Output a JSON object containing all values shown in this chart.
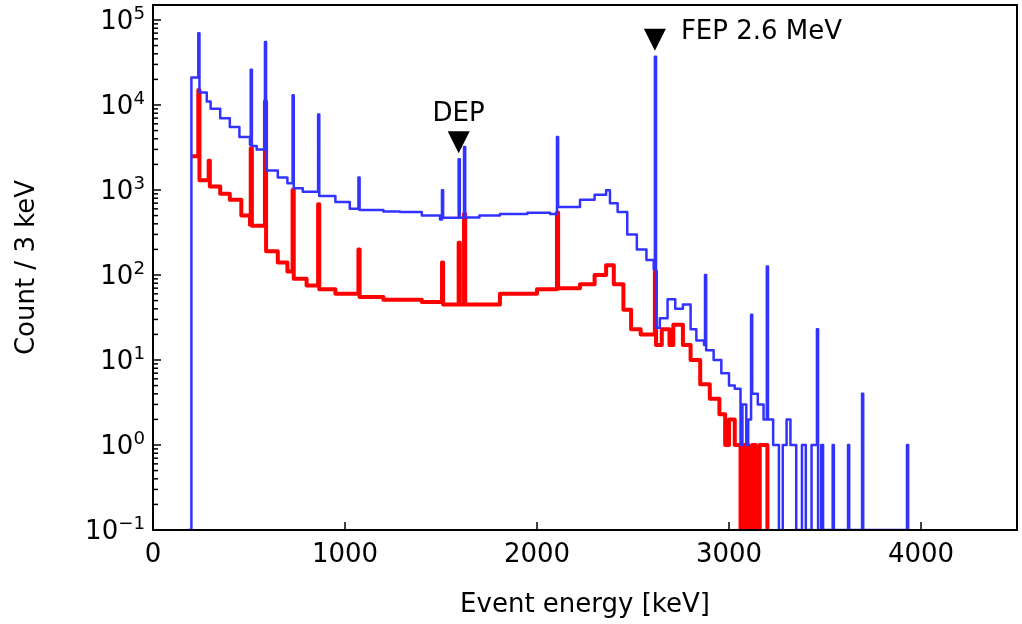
{
  "chart_data": {
    "type": "step",
    "xlabel": "Event energy [keV]",
    "ylabel": "Count / 3 keV",
    "log": "y",
    "grid": false,
    "xlim": [
      0,
      4500
    ],
    "xticks": [
      0,
      1000,
      2000,
      3000,
      4000
    ],
    "ylim": [
      0.1,
      150000
    ],
    "yticks": [
      {
        "value": 0.1,
        "label": "10$^{−1}$"
      },
      {
        "value": 0.2,
        "label": null
      },
      {
        "value": 0.3,
        "label": null
      },
      {
        "value": 0.4,
        "label": null
      },
      {
        "value": 0.5,
        "label": null
      },
      {
        "value": 0.6,
        "label": null
      },
      {
        "value": 0.7,
        "label": null
      },
      {
        "value": 0.8,
        "label": null
      },
      {
        "value": 0.9,
        "label": null
      },
      {
        "value": 1,
        "label": "10$^{0}$"
      },
      {
        "value": 2,
        "label": null
      },
      {
        "value": 3,
        "label": null
      },
      {
        "value": 4,
        "label": null
      },
      {
        "value": 5,
        "label": null
      },
      {
        "value": 6,
        "label": null
      },
      {
        "value": 7,
        "label": null
      },
      {
        "value": 8,
        "label": null
      },
      {
        "value": 9,
        "label": null
      },
      {
        "value": 10,
        "label": "10$^{1}$"
      },
      {
        "value": 20,
        "label": null
      },
      {
        "value": 30,
        "label": null
      },
      {
        "value": 40,
        "label": null
      },
      {
        "value": 50,
        "label": null
      },
      {
        "value": 60,
        "label": null
      },
      {
        "value": 70,
        "label": null
      },
      {
        "value": 80,
        "label": null
      },
      {
        "value": 90,
        "label": null
      },
      {
        "value": 100,
        "label": "10$^{2}$"
      },
      {
        "value": 200,
        "label": null
      },
      {
        "value": 300,
        "label": null
      },
      {
        "value": 400,
        "label": null
      },
      {
        "value": 500,
        "label": null
      },
      {
        "value": 600,
        "label": null
      },
      {
        "value": 700,
        "label": null
      },
      {
        "value": 800,
        "label": null
      },
      {
        "value": 900,
        "label": null
      },
      {
        "value": 1000,
        "label": "10$^{3}$"
      },
      {
        "value": 2000,
        "label": null
      },
      {
        "value": 3000,
        "label": null
      },
      {
        "value": 4000,
        "label": null
      },
      {
        "value": 5000,
        "label": null
      },
      {
        "value": 6000,
        "label": null
      },
      {
        "value": 7000,
        "label": null
      },
      {
        "value": 8000,
        "label": null
      },
      {
        "value": 9000,
        "label": null
      },
      {
        "value": 10000,
        "label": "10$^{4}$"
      },
      {
        "value": 20000,
        "label": null
      },
      {
        "value": 30000,
        "label": null
      },
      {
        "value": 40000,
        "label": null
      },
      {
        "value": 50000,
        "label": null
      },
      {
        "value": 60000,
        "label": null
      },
      {
        "value": 70000,
        "label": null
      },
      {
        "value": 80000,
        "label": null
      },
      {
        "value": 90000,
        "label": null
      },
      {
        "value": 100000,
        "label": "10$^{5}$"
      }
    ],
    "annotations": [
      {
        "text": "DEP",
        "x": 1592,
        "y": 2300
      },
      {
        "text": "FEP 2.6 MeV",
        "x": 2614,
        "y": 37000
      }
    ],
    "series": [
      {
        "color": "#ff0000",
        "x": [
          200,
          236,
          242,
          290,
          296,
          350,
          400,
          460,
          505,
          509,
          515,
          583,
          589,
          650,
          700,
          727,
          733,
          800,
          860,
          866,
          950,
          1070,
          1076,
          1200,
          1400,
          1505,
          1511,
          1592,
          1598,
          1620,
          1626,
          1807,
          2000,
          2104,
          2110,
          2224,
          2300,
          2360,
          2400,
          2450,
          2490,
          2540,
          2614,
          2620,
          2650,
          2690,
          2710,
          2760,
          2800,
          2850,
          2900,
          2950,
          2980,
          3000,
          3030,
          3060,
          3080,
          3100,
          3120,
          3140,
          3160,
          3200
        ],
        "values": [
          2500,
          15000,
          1300,
          2200,
          1100,
          900,
          770,
          500,
          390,
          3100,
          380,
          11000,
          190,
          140,
          110,
          1000,
          90,
          75,
          680,
          68,
          60,
          200,
          55,
          51,
          48,
          140,
          45,
          240,
          45,
          520,
          45,
          60,
          68,
          545,
          70,
          78,
          100,
          130,
          78,
          39,
          23,
          20,
          110,
          15,
          23,
          15,
          26,
          15,
          10,
          5.2,
          3.5,
          2.3,
          1,
          2,
          1,
          0.1,
          1,
          0.1,
          1,
          0.1,
          1,
          0.1
        ]
      },
      {
        "color": "#3333ff",
        "x": [
          180,
          200,
          236,
          242,
          280,
          300,
          350,
          400,
          450,
          505,
          509,
          515,
          540,
          583,
          589,
          650,
          700,
          727,
          733,
          780,
          860,
          866,
          950,
          1025,
          1070,
          1076,
          1200,
          1286,
          1400,
          1495,
          1505,
          1511,
          1592,
          1598,
          1620,
          1626,
          1700,
          1807,
          1950,
          2068,
          2104,
          2110,
          2224,
          2300,
          2360,
          2380,
          2420,
          2470,
          2520,
          2570,
          2608,
          2614,
          2620,
          2640,
          2680,
          2720,
          2760,
          2800,
          2830,
          2870,
          2875,
          2881,
          2920,
          2960,
          3000,
          3030,
          3060,
          3070,
          3090,
          3100,
          3115,
          3121,
          3150,
          3180,
          3197,
          3203,
          3230,
          3260,
          3280,
          3300,
          3320,
          3350,
          3380,
          3400,
          3430,
          3458,
          3464,
          3480,
          3490,
          3540,
          3546,
          3620,
          3626,
          3693,
          3699,
          3927,
          3933
        ],
        "values": [
          0.1,
          21000,
          70000,
          14000,
          11000,
          9000,
          7000,
          5500,
          4200,
          3400,
          26000,
          3300,
          3000,
          55000,
          1700,
          1400,
          1200,
          13000,
          1050,
          950,
          7700,
          850,
          720,
          600,
          1400,
          580,
          560,
          550,
          500,
          450,
          990,
          470,
          2300,
          470,
          3200,
          475,
          500,
          520,
          540,
          520,
          4200,
          630,
          770,
          880,
          990,
          700,
          550,
          300,
          200,
          150,
          117,
          37000,
          24,
          31,
          52,
          40,
          45,
          23,
          17,
          15,
          100,
          13,
          10,
          7,
          5,
          4.6,
          1,
          3,
          1,
          2,
          34,
          4,
          3,
          2,
          126,
          2,
          1,
          0.1,
          1,
          2,
          1,
          0.1,
          1,
          0.1,
          1,
          23,
          0.1,
          1,
          0.1,
          1,
          0.1,
          1,
          0.1,
          4,
          0.1,
          1,
          0.1
        ]
      }
    ]
  }
}
